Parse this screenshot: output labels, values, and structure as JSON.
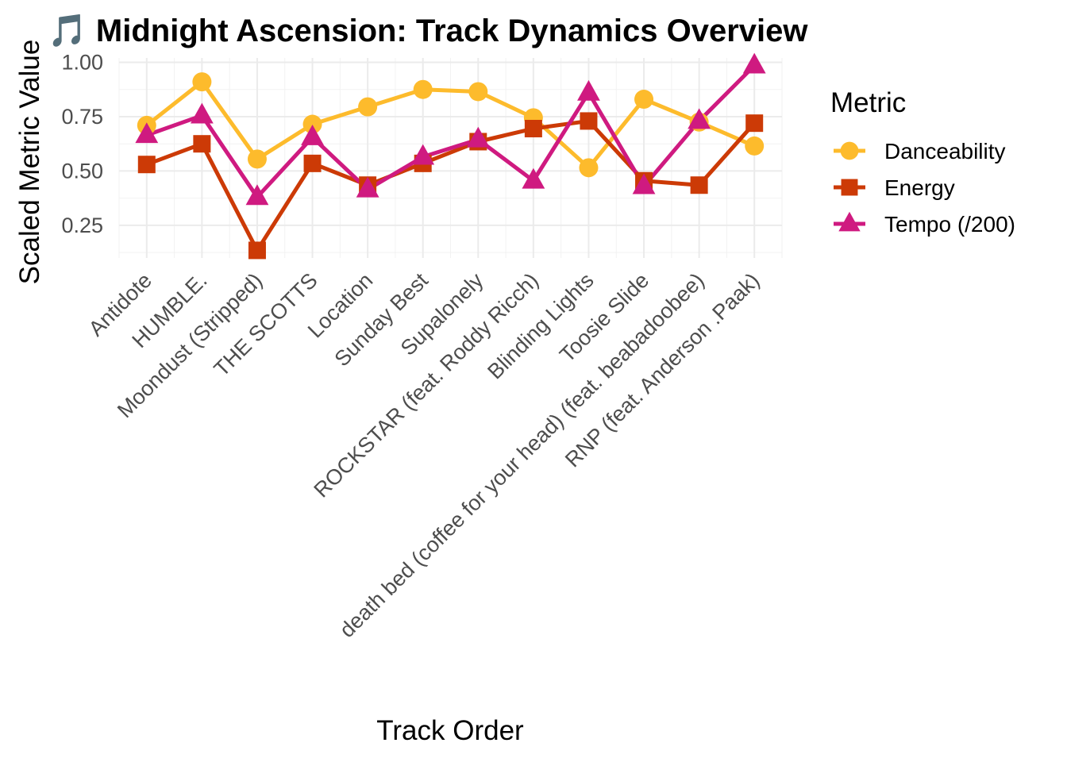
{
  "chart_data": {
    "type": "line",
    "title": "🎵 Midnight Ascension: Track Dynamics Overview",
    "xlabel": "Track Order",
    "ylabel": "Scaled Metric Value",
    "categories": [
      "Antidote",
      "HUMBLE.",
      "Moondust (Stripped)",
      "THE SCOTTS",
      "Location",
      "Sunday Best",
      "Supalonely",
      "ROCKSTAR (feat. Roddy Ricch)",
      "Blinding Lights",
      "Toosie Slide",
      "death bed (coffee for your head) (feat. beabadoobee)",
      "RNP (feat. Anderson .Paak)"
    ],
    "ylim": [
      0.1,
      1.02
    ],
    "y_ticks": [
      0.25,
      0.5,
      0.75,
      1.0
    ],
    "y_tick_labels": [
      "0.25",
      "0.50",
      "0.75",
      "1.00"
    ],
    "grid": true,
    "legend": {
      "title": "Metric",
      "placement": "right"
    },
    "series": [
      {
        "name": "Danceability",
        "color": "#FDBB2C",
        "marker": "circle",
        "values": [
          0.71,
          0.91,
          0.555,
          0.715,
          0.795,
          0.875,
          0.865,
          0.745,
          0.515,
          0.83,
          0.725,
          0.615
        ]
      },
      {
        "name": "Energy",
        "color": "#CC3A06",
        "marker": "square",
        "values": [
          0.53,
          0.625,
          0.135,
          0.535,
          0.435,
          0.535,
          0.635,
          0.695,
          0.73,
          0.455,
          0.435,
          0.72
        ]
      },
      {
        "name": "Tempo (/200)",
        "color": "#CF1A80",
        "marker": "triangle",
        "values": [
          0.665,
          0.755,
          0.38,
          0.655,
          0.415,
          0.565,
          0.645,
          0.455,
          0.86,
          0.43,
          0.73,
          0.985
        ]
      }
    ]
  }
}
